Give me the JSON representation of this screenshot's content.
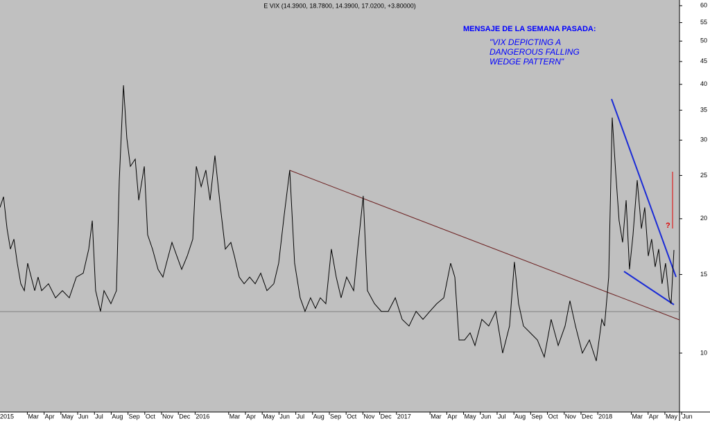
{
  "chart_data": {
    "type": "line",
    "title": "E VIX (14.3900, 18.7800, 14.3900, 17.0200, +3.80000)",
    "annotations": [
      "MENSAJE DE LA SEMANA PASADA:",
      "\"VIX DEPICTING A",
      "DANGEROUS FALLING",
      "WEDGE PATTERN\""
    ],
    "color": "#000000",
    "annotation_color": "#0000ff",
    "log_scale": true,
    "grid": false,
    "x": [
      0.37,
      0.58,
      0.79,
      0.99,
      1.2,
      1.4,
      1.61,
      1.82,
      2.02,
      2.23,
      2.44,
      2.64,
      2.85,
      3.26,
      3.68,
      4.09,
      4.5,
      4.92,
      5.33,
      5.66,
      5.87,
      6.07,
      6.36,
      6.57,
      6.98,
      7.31,
      7.48,
      7.73,
      7.93,
      8.14,
      8.43,
      8.64,
      8.97,
      9.17,
      9.46,
      9.79,
      10.08,
      10.29,
      10.62,
      10.91,
      11.2,
      11.53,
      11.86,
      12.07,
      12.36,
      12.64,
      12.89,
      13.18,
      13.51,
      13.8,
      14.13,
      14.34,
      14.63,
      14.92,
      15.25,
      15.58,
      15.91,
      16.28,
      16.69,
      16.98,
      17.31,
      17.64,
      17.93,
      18.26,
      18.55,
      18.88,
      19.17,
      19.46,
      19.79,
      20.12,
      20.41,
      20.7,
      21.03,
      21.45,
      21.69,
      22.02,
      22.27,
      22.69,
      23.1,
      23.51,
      23.93,
      24.34,
      24.75,
      25.17,
      25.58,
      25.99,
      26.4,
      26.82,
      27.23,
      27.48,
      27.73,
      28.06,
      28.39,
      28.68,
      29.09,
      29.5,
      29.92,
      30.33,
      30.74,
      31.03,
      31.28,
      31.57,
      31.98,
      32.4,
      32.81,
      33.22,
      33.64,
      34.05,
      34.34,
      34.67,
      35.08,
      35.5,
      35.91,
      36.24,
      36.4,
      36.65,
      36.86,
      37.07,
      37.27,
      37.48,
      37.69,
      37.89,
      38.1,
      38.35,
      38.6,
      38.8,
      39.01,
      39.21,
      39.42,
      39.63,
      39.83,
      40.04,
      40.25,
      40.37,
      40.54
    ],
    "values": [
      21.2,
      22.4,
      19.0,
      17.1,
      18.0,
      15.9,
      14.3,
      13.8,
      15.9,
      14.8,
      13.8,
      14.8,
      13.8,
      14.3,
      13.3,
      13.8,
      13.3,
      14.8,
      15.1,
      17.1,
      19.8,
      13.8,
      12.4,
      13.8,
      12.9,
      13.8,
      24.4,
      39.8,
      30.3,
      26.2,
      27.2,
      22.0,
      26.2,
      18.4,
      17.1,
      15.4,
      14.8,
      15.9,
      17.7,
      16.5,
      15.4,
      16.5,
      18.0,
      26.2,
      23.6,
      25.7,
      22.0,
      27.7,
      21.2,
      17.1,
      17.7,
      16.5,
      14.8,
      14.3,
      14.8,
      14.3,
      15.1,
      13.8,
      14.3,
      15.9,
      20.4,
      25.7,
      15.9,
      13.3,
      12.4,
      13.3,
      12.6,
      13.3,
      12.9,
      17.1,
      14.8,
      13.3,
      14.8,
      13.8,
      17.1,
      22.5,
      13.8,
      12.9,
      12.4,
      12.4,
      13.3,
      11.9,
      11.5,
      12.4,
      11.9,
      12.4,
      12.9,
      13.3,
      15.9,
      14.8,
      10.7,
      10.7,
      11.1,
      10.4,
      11.9,
      11.5,
      12.4,
      10.0,
      11.5,
      16.0,
      12.9,
      11.5,
      11.1,
      10.7,
      9.8,
      11.9,
      10.4,
      11.5,
      13.1,
      11.5,
      10.0,
      10.7,
      9.6,
      11.9,
      11.5,
      14.8,
      33.7,
      25.3,
      19.8,
      17.7,
      22.0,
      15.4,
      18.4,
      24.4,
      19.0,
      21.2,
      16.5,
      18.0,
      15.6,
      17.1,
      14.3,
      15.9,
      13.3,
      12.9,
      17.02
    ],
    "xlim": [
      0.37,
      40.87
    ],
    "xticks": [
      {
        "value": 0,
        "label": "2015"
      },
      {
        "value": 2,
        "label": "Mar"
      },
      {
        "value": 3,
        "label": "Apr"
      },
      {
        "value": 4,
        "label": "May"
      },
      {
        "value": 5,
        "label": "Jun"
      },
      {
        "value": 6,
        "label": "Jul"
      },
      {
        "value": 7,
        "label": "Aug"
      },
      {
        "value": 8,
        "label": "Sep"
      },
      {
        "value": 9,
        "label": "Oct"
      },
      {
        "value": 10,
        "label": "Nov"
      },
      {
        "value": 11,
        "label": "Dec"
      },
      {
        "value": 12,
        "label": "2016"
      },
      {
        "value": 14,
        "label": "Mar"
      },
      {
        "value": 15,
        "label": "Apr"
      },
      {
        "value": 16,
        "label": "May"
      },
      {
        "value": 17,
        "label": "Jun"
      },
      {
        "value": 18,
        "label": "Jul"
      },
      {
        "value": 19,
        "label": "Aug"
      },
      {
        "value": 20,
        "label": "Sep"
      },
      {
        "value": 21,
        "label": "Oct"
      },
      {
        "value": 22,
        "label": "Nov"
      },
      {
        "value": 23,
        "label": "Dec"
      },
      {
        "value": 24,
        "label": "2017"
      },
      {
        "value": 26,
        "label": "Mar"
      },
      {
        "value": 27,
        "label": "Apr"
      },
      {
        "value": 28,
        "label": "May"
      },
      {
        "value": 29,
        "label": "Jun"
      },
      {
        "value": 30,
        "label": "Jul"
      },
      {
        "value": 31,
        "label": "Aug"
      },
      {
        "value": 32,
        "label": "Sep"
      },
      {
        "value": 33,
        "label": "Oct"
      },
      {
        "value": 34,
        "label": "Nov"
      },
      {
        "value": 35,
        "label": "Dec"
      },
      {
        "value": 36,
        "label": "2018"
      },
      {
        "value": 38,
        "label": "Mar"
      },
      {
        "value": 39,
        "label": "Apr"
      },
      {
        "value": 40,
        "label": "May"
      },
      {
        "value": 41,
        "label": "Jun"
      }
    ],
    "ylim": [
      7.38,
      61.8
    ],
    "yticks": [
      10,
      15,
      20,
      25,
      30,
      35,
      40,
      45,
      50,
      55,
      60
    ]
  }
}
